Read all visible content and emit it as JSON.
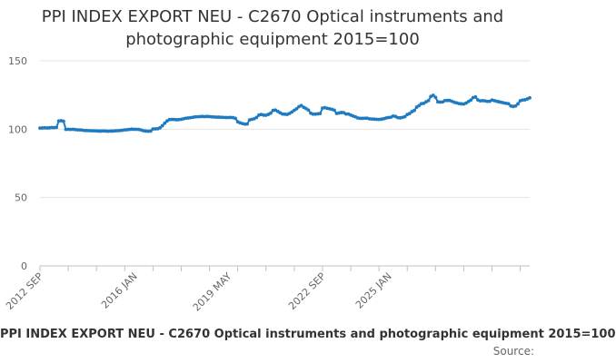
{
  "chart_data": {
    "type": "line",
    "title": [
      "PPI INDEX EXPORT NEU - C2670 Optical instruments and",
      "photographic equipment 2015=100"
    ],
    "caption": "PPI INDEX EXPORT NEU - C2670 Optical instruments and photographic equipment 2015=100",
    "source_label": "Source:",
    "ylim": [
      0,
      150
    ],
    "yticks": [
      0,
      50,
      100,
      150
    ],
    "xtick_labels": [
      "2012 SEP",
      "2016 JAN",
      "2019 MAY",
      "2022 SEP",
      "2025 JAN"
    ],
    "grid": true,
    "color": "#1f7bc1",
    "series": [
      {
        "start": "2012-09",
        "values": [
          100.8,
          100.9,
          101.0,
          100.9,
          101.0,
          101.2,
          101.1,
          101.3,
          106.0,
          106.2,
          105.8,
          99.8,
          99.9,
          99.8,
          99.9,
          99.7,
          99.5,
          99.5,
          99.3,
          99.0,
          99.0,
          98.9,
          98.8,
          98.8,
          98.7,
          98.6,
          98.6,
          98.7,
          98.6,
          98.5,
          98.6,
          98.6,
          98.8,
          98.9,
          99.0,
          99.2,
          99.5,
          99.6,
          99.8,
          100.0,
          99.9,
          99.9,
          99.8,
          99.4,
          98.8,
          98.6,
          98.5,
          98.6,
          100.1,
          100.2,
          100.3,
          101.0,
          102.5,
          104.4,
          106.0,
          107.0,
          107.1,
          107.1,
          106.9,
          107.0,
          107.2,
          107.6,
          108.0,
          108.2,
          108.4,
          108.7,
          109.0,
          109.1,
          109.2,
          109.3,
          109.2,
          109.3,
          109.2,
          109.0,
          108.9,
          108.8,
          108.8,
          108.7,
          108.6,
          108.5,
          108.5,
          108.6,
          108.4,
          107.9,
          105.4,
          104.6,
          104.1,
          103.7,
          103.8,
          106.8,
          107.2,
          107.6,
          108.6,
          110.3,
          110.7,
          110.3,
          110.2,
          110.8,
          111.7,
          113.7,
          114.0,
          113.0,
          112.0,
          111.1,
          110.9,
          110.8,
          111.5,
          112.6,
          113.8,
          114.9,
          116.5,
          117.3,
          116.0,
          115.1,
          114.0,
          111.7,
          111.0,
          111.0,
          111.2,
          111.4,
          115.4,
          115.7,
          115.2,
          114.9,
          114.5,
          113.9,
          111.5,
          111.8,
          112.2,
          112.1,
          111.1,
          111.1,
          110.3,
          109.6,
          109.0,
          108.2,
          107.9,
          107.9,
          108.0,
          108.0,
          107.5,
          107.4,
          107.3,
          107.2,
          107.1,
          107.3,
          107.6,
          108.2,
          108.5,
          108.7,
          109.6,
          109.3,
          108.4,
          108.3,
          108.6,
          109.2,
          110.7,
          111.4,
          112.8,
          113.7,
          116.1,
          117.2,
          118.6,
          118.9,
          120.0,
          120.9,
          123.9,
          124.8,
          123.3,
          120.0,
          119.8,
          119.9,
          120.9,
          121.0,
          121.0,
          120.4,
          119.6,
          119.2,
          118.7,
          118.5,
          118.4,
          119.1,
          120.2,
          121.3,
          123.1,
          123.5,
          121.4,
          120.7,
          120.9,
          120.7,
          120.3,
          120.4,
          121.3,
          120.9,
          120.4,
          120.0,
          119.6,
          119.2,
          118.9,
          118.6,
          117.0,
          116.6,
          117.0,
          118.5,
          120.8,
          121.3,
          121.5,
          122.1,
          122.9
        ]
      }
    ]
  }
}
